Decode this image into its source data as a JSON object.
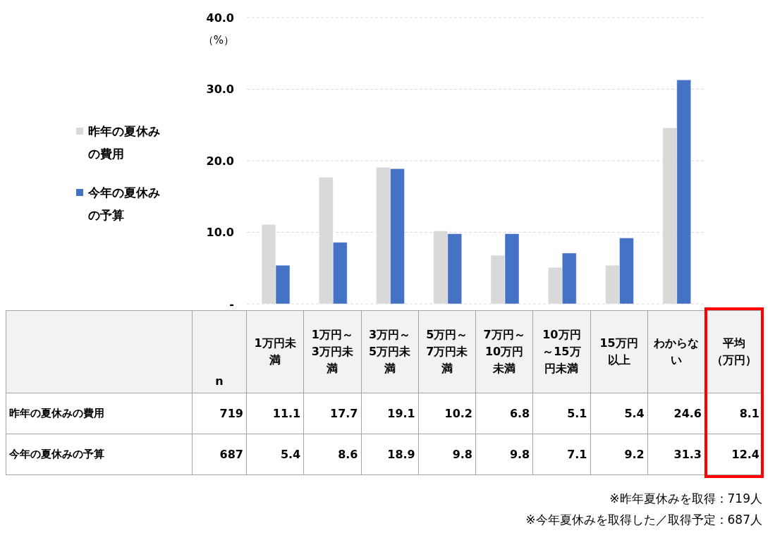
{
  "chart_data": {
    "type": "bar",
    "categories": [
      "1万円未満",
      "1万円～3万円未満",
      "3万円～5万円未満",
      "5万円～7万円未満",
      "7万円～10万円未満",
      "10万円～15万円未満",
      "15万円以上",
      "わからない"
    ],
    "series": [
      {
        "name": "昨年の夏休みの費用",
        "color": "#d9d9d9",
        "values": [
          11.1,
          17.7,
          19.1,
          10.2,
          6.8,
          5.1,
          5.4,
          24.6
        ]
      },
      {
        "name": "今年の夏休みの予算",
        "color": "#4472c4",
        "values": [
          5.4,
          8.6,
          18.9,
          9.8,
          9.8,
          7.1,
          9.2,
          31.3
        ]
      }
    ],
    "ylabel": "（%）",
    "ylim": [
      0,
      40
    ],
    "yticks": [
      {
        "value": 0,
        "label": "-"
      },
      {
        "value": 10,
        "label": "10.0"
      },
      {
        "value": 20,
        "label": "20.0"
      },
      {
        "value": 30,
        "label": "30.0"
      },
      {
        "value": 40,
        "label": "40.0"
      }
    ],
    "grid": "y",
    "legend": "left",
    "data_labels": true,
    "annotations": [
      "n",
      "719",
      "687",
      "平均（万円）",
      "8.1",
      "12.4",
      "※昨年夏休みを取得：719人",
      "※今年夏休みを取得した／取得予定：687人"
    ]
  }
}
